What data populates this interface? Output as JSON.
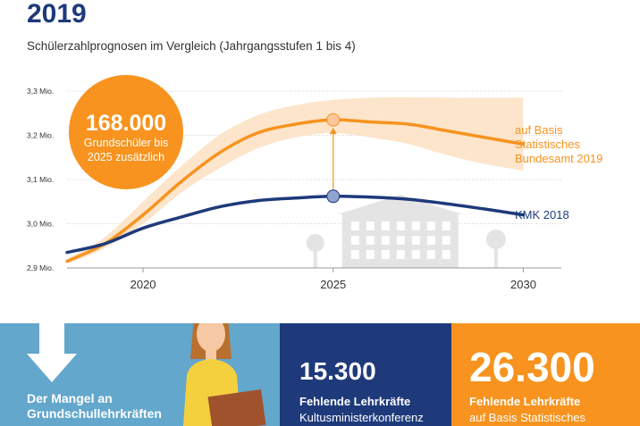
{
  "header": {
    "title": "2019",
    "subtitle": "Schülerzahlprognosen im Vergleich (Jahrgangsstufen 1 bis 4)"
  },
  "chart_data": {
    "type": "line",
    "title": "Schülerzahlprognosen im Vergleich (Jahrgangsstufen 1 bis 4)",
    "xlabel": "",
    "ylabel": "",
    "xlim": [
      2018,
      2031
    ],
    "ylim": [
      2.9,
      3.3
    ],
    "x_ticks": [
      "2020",
      "2025",
      "2030"
    ],
    "y_ticks": [
      "3,3 Mio.",
      "3,2 Mio.",
      "3,1 Mio.",
      "3,0 Mio.",
      "2,9 Mio."
    ],
    "x": [
      2018,
      2019,
      2020,
      2021,
      2022,
      2023,
      2024,
      2025,
      2026,
      2027,
      2028,
      2029,
      2030
    ],
    "series": [
      {
        "name": "auf Basis Statistisches Bundesamt 2019",
        "color": "#f7931e",
        "values": [
          2.915,
          2.955,
          3.02,
          3.095,
          3.16,
          3.205,
          3.225,
          3.235,
          3.23,
          3.225,
          3.21,
          3.195,
          3.18
        ]
      },
      {
        "name": "KMK 2018",
        "color": "#1e3a7b",
        "values": [
          2.935,
          2.955,
          2.99,
          3.015,
          3.038,
          3.052,
          3.058,
          3.062,
          3.06,
          3.055,
          3.045,
          3.033,
          3.02
        ]
      }
    ],
    "band": {
      "color": "#fbe0c2",
      "upper": [
        2.92,
        2.97,
        3.05,
        3.13,
        3.2,
        3.245,
        3.268,
        3.28,
        3.285,
        3.286,
        3.285,
        3.285,
        3.285
      ],
      "lower": [
        2.91,
        2.945,
        3.0,
        3.07,
        3.125,
        3.17,
        3.195,
        3.205,
        3.195,
        3.18,
        3.155,
        3.135,
        3.12
      ]
    },
    "highlight_year": 2025,
    "callout": {
      "value": "168.000",
      "text": "Grundschüler bis 2025 zusätzlich"
    }
  },
  "panels": {
    "left_text": "Der Mangel an Grundschullehrkräften",
    "kmk_value": "15.300",
    "kmk_label": "Fehlende Lehrkräfte",
    "kmk_source": "Kultusministerkonferenz",
    "destatis_value": "26.300",
    "destatis_label": "Fehlende Lehrkräfte",
    "destatis_source": "auf Basis Statistisches"
  },
  "colors": {
    "navy": "#1e3a7b",
    "orange": "#f7931e",
    "lightblue": "#63a7cc",
    "band": "#fbe0c2"
  }
}
